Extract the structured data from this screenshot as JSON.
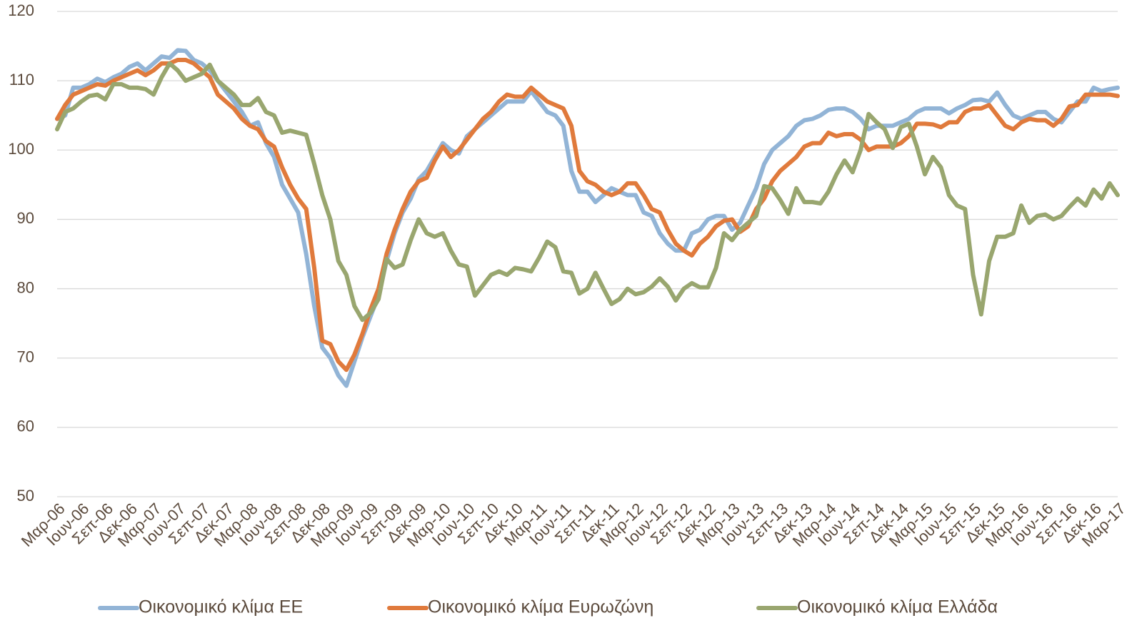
{
  "chart_data": {
    "type": "line",
    "categories": [
      "Μαρ-06",
      null,
      null,
      "Ιουν-06",
      null,
      null,
      "Σεπ-06",
      null,
      null,
      "Δεκ-06",
      null,
      null,
      "Μαρ-07",
      null,
      null,
      "Ιουν-07",
      null,
      null,
      "Σεπ-07",
      null,
      null,
      "Δεκ-07",
      null,
      null,
      "Μαρ-08",
      null,
      null,
      "Ιουν-08",
      null,
      null,
      "Σεπ-08",
      null,
      null,
      "Δεκ-08",
      null,
      null,
      "Μαρ-09",
      null,
      null,
      "Ιουν-09",
      null,
      null,
      "Σεπ-09",
      null,
      null,
      "Δεκ-09",
      null,
      null,
      "Μαρ-10",
      null,
      null,
      "Ιουν-10",
      null,
      null,
      "Σεπ-10",
      null,
      null,
      "Δεκ-10",
      null,
      null,
      "Μαρ-11",
      null,
      null,
      "Ιουν-11",
      null,
      null,
      "Σεπ-11",
      null,
      null,
      "Δεκ-11",
      null,
      null,
      "Μαρ-12",
      null,
      null,
      "Ιουν-12",
      null,
      null,
      "Σεπ-12",
      null,
      null,
      "Δεκ-12",
      null,
      null,
      "Μαρ-13",
      null,
      null,
      "Ιουν-13",
      null,
      null,
      "Σεπ-13",
      null,
      null,
      "Δεκ-13",
      null,
      null,
      "Μαρ-14",
      null,
      null,
      "Ιουν-14",
      null,
      null,
      "Σεπ-14",
      null,
      null,
      "Δεκ-14",
      null,
      null,
      "Μαρ-15",
      null,
      null,
      "Ιουν-15",
      null,
      null,
      "Σεπ-15",
      null,
      null,
      "Δεκ-15",
      null,
      null,
      "Μαρ-16",
      null,
      null,
      "Ιουν-16",
      null,
      null,
      "Σεπ-16",
      null,
      null,
      "Δεκ-16",
      null,
      null,
      "Μαρ-17"
    ],
    "series": [
      {
        "name": "Οικονομικό κλίμα ΕΕ",
        "color": "#92b4d6",
        "values": [
          104.5,
          105,
          109,
          109,
          109.5,
          110.3,
          109.8,
          110.5,
          111,
          112,
          112.5,
          111.5,
          112.5,
          113.5,
          113.3,
          114.4,
          114.3,
          113,
          112.5,
          111.5,
          110,
          108.5,
          107,
          105.5,
          103.5,
          104,
          101,
          99,
          95,
          93,
          91,
          85,
          77.5,
          71.5,
          70,
          67.5,
          66,
          69.5,
          73,
          76,
          79,
          84,
          88,
          91,
          93,
          95.8,
          97,
          99,
          101,
          100,
          99.5,
          102,
          103,
          104,
          105,
          106,
          107,
          107,
          107,
          108.5,
          107,
          105.5,
          105,
          103.5,
          97,
          94,
          94,
          92.5,
          93.5,
          94.5,
          94,
          93.5,
          93.5,
          91,
          90.5,
          88,
          86.5,
          85.5,
          85.5,
          88,
          88.5,
          90,
          90.5,
          90.5,
          88.5,
          89.5,
          92,
          94.5,
          98,
          100,
          101,
          102,
          103.5,
          104.3,
          104.5,
          105,
          105.8,
          106,
          106,
          105.5,
          104.5,
          103,
          103.5,
          103.5,
          103.5,
          104,
          104.5,
          105.5,
          106,
          106,
          106,
          105.3,
          106,
          106.5,
          107.2,
          107.3,
          107,
          108.3,
          106.5,
          105,
          104.5,
          105,
          105.5,
          105.5,
          104.5,
          104,
          105.5,
          107,
          107,
          109,
          108.5,
          108.8,
          109
        ]
      },
      {
        "name": "Οικονομικό κλίμα Ευρωζώνη",
        "color": "#e07a3c",
        "values": [
          104.5,
          106.5,
          108,
          108.5,
          109,
          109.5,
          109.3,
          110,
          110.5,
          111,
          111.5,
          110.8,
          111.5,
          112.5,
          112.5,
          113,
          113,
          112.5,
          111.5,
          110.5,
          108,
          107,
          106,
          104.5,
          103.5,
          103,
          101.3,
          100.5,
          97.5,
          95,
          93,
          91.5,
          83,
          72.5,
          72,
          69.5,
          68.3,
          70.5,
          73.5,
          77,
          80,
          85,
          88.5,
          91.5,
          94,
          95.5,
          96,
          98.5,
          100.5,
          99,
          100,
          101.5,
          103,
          104.5,
          105.5,
          107,
          108,
          107.7,
          107.7,
          109,
          108,
          107,
          106.5,
          106,
          103.5,
          97,
          95.5,
          95,
          94,
          93.5,
          94,
          95.2,
          95.2,
          93.5,
          91.5,
          91,
          88.5,
          86.5,
          85.5,
          84.8,
          86.5,
          87.5,
          89,
          89.8,
          90,
          88.2,
          89,
          91.5,
          93,
          95.5,
          97,
          98,
          99,
          100.5,
          101,
          101,
          102.5,
          102,
          102.3,
          102.3,
          101.5,
          100,
          100.5,
          100.5,
          100.5,
          101,
          102,
          103.8,
          103.8,
          103.7,
          103.3,
          104,
          104,
          105.5,
          106,
          106,
          106.5,
          105,
          103.5,
          103,
          104,
          104.5,
          104.3,
          104.3,
          103.5,
          104.5,
          106.3,
          106.5,
          108,
          108,
          108,
          108,
          107.8
        ]
      },
      {
        "name": "Οικονομικό κλίμα Ελλάδα",
        "color": "#99a66f",
        "values": [
          103,
          105.5,
          106,
          107,
          107.8,
          108,
          107.3,
          109.5,
          109.5,
          109,
          109,
          108.8,
          108,
          110.5,
          112.5,
          111.5,
          110,
          110.5,
          111,
          112.3,
          110,
          109,
          108,
          106.5,
          106.5,
          107.5,
          105.5,
          105,
          102.5,
          102.8,
          102.5,
          102.2,
          98,
          93.5,
          90,
          84,
          82,
          77.5,
          75.5,
          76.5,
          78.5,
          84.3,
          83,
          83.5,
          87,
          90,
          88,
          87.5,
          88,
          85.5,
          83.5,
          83.2,
          79,
          80.5,
          82,
          82.5,
          82,
          83,
          82.8,
          82.5,
          84.5,
          86.8,
          86,
          82.5,
          82.3,
          79.3,
          80,
          82.3,
          80,
          77.8,
          78.5,
          80,
          79.2,
          79.5,
          80.3,
          81.5,
          80.3,
          78.3,
          80,
          80.8,
          80.2,
          80.2,
          83,
          88,
          87,
          88.5,
          89.5,
          90.5,
          94.8,
          94.5,
          92.8,
          90.8,
          94.5,
          92.5,
          92.5,
          92.3,
          94,
          96.5,
          98.5,
          96.8,
          100,
          105.2,
          104,
          103,
          100.3,
          103.3,
          103.8,
          100.5,
          96.5,
          99,
          97.5,
          93.5,
          92,
          91.5,
          82,
          76.3,
          84,
          87.5,
          87.5,
          88,
          92,
          89.5,
          90.5,
          90.7,
          90,
          90.5,
          91.8,
          93,
          92,
          94.3,
          93,
          95.2,
          93.5
        ]
      }
    ],
    "ylim": [
      50,
      120
    ],
    "yticks": [
      50,
      60,
      70,
      80,
      90,
      100,
      110,
      120
    ],
    "grid": true,
    "legend": "bottom"
  }
}
